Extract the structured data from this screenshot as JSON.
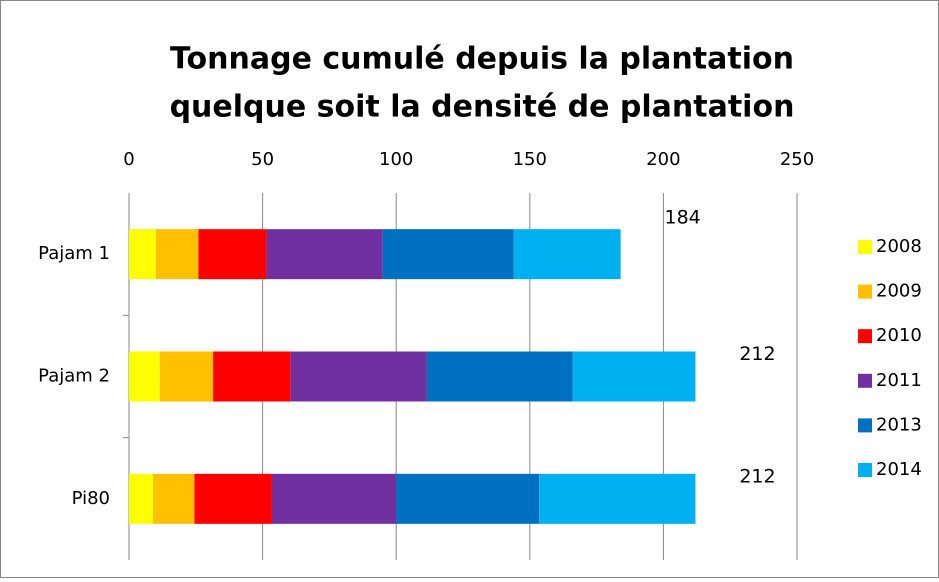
{
  "chart_data": {
    "type": "stacked-barh",
    "title": [
      "Tonnage cumulé depuis la plantation",
      "quelque soit la densité de plantation"
    ],
    "categories": [
      "Pajam 1",
      "Pajam 2",
      "Pi80"
    ],
    "series": [
      {
        "name": "2008",
        "color": "#ffff00",
        "values": [
          10,
          11.5,
          9
        ]
      },
      {
        "name": "2009",
        "color": "#ffc000",
        "values": [
          16,
          20,
          15.5
        ]
      },
      {
        "name": "2010",
        "color": "#ff0000",
        "values": [
          25.5,
          29,
          29
        ]
      },
      {
        "name": "2011",
        "color": "#7030a0",
        "values": [
          43.5,
          51,
          46.5
        ]
      },
      {
        "name": "2013",
        "color": "#0070c0",
        "values": [
          49,
          54.5,
          53.5
        ]
      },
      {
        "name": "2014",
        "color": "#00b0f0",
        "values": [
          40,
          46,
          58.5
        ]
      }
    ],
    "totals": [
      184,
      212,
      212
    ],
    "xlim": [
      0,
      250
    ],
    "xticks": [
      0,
      50,
      100,
      150,
      200,
      250
    ],
    "grid": true,
    "legend": "right"
  }
}
